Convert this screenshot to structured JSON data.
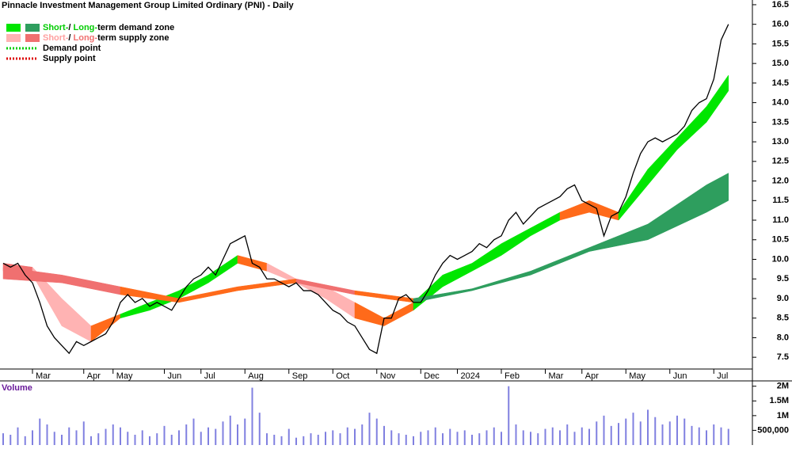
{
  "chart_data": [
    {
      "type": "line",
      "title": "Pinnacle Investment Management Group Limited Ordinary (PNI) - Daily",
      "color": "#000000",
      "categories": [
        null,
        null,
        null,
        null,
        "Mar",
        null,
        null,
        null,
        null,
        null,
        null,
        "Apr",
        null,
        null,
        null,
        "May",
        null,
        null,
        null,
        null,
        null,
        null,
        "Jun",
        null,
        null,
        null,
        null,
        "Jul",
        null,
        null,
        null,
        null,
        null,
        "Aug",
        null,
        null,
        null,
        null,
        null,
        "Sep",
        null,
        null,
        null,
        null,
        null,
        "Oct",
        null,
        null,
        null,
        null,
        null,
        "Nov",
        null,
        null,
        null,
        null,
        null,
        "Dec",
        null,
        null,
        null,
        null,
        "2024",
        null,
        null,
        null,
        null,
        null,
        "Feb",
        null,
        null,
        null,
        null,
        null,
        "Mar",
        null,
        null,
        null,
        null,
        "Apr",
        null,
        null,
        null,
        null,
        null,
        "May",
        null,
        null,
        null,
        null,
        null,
        "Jun",
        null,
        null,
        null,
        null,
        null,
        "Jul",
        null,
        null
      ],
      "values": [
        9.9,
        9.8,
        9.9,
        9.6,
        9.4,
        8.9,
        8.3,
        8.0,
        7.8,
        7.6,
        7.9,
        7.8,
        7.9,
        8.0,
        8.1,
        8.4,
        8.9,
        9.1,
        8.9,
        9.0,
        8.8,
        8.9,
        8.8,
        8.7,
        9.0,
        9.3,
        9.5,
        9.6,
        9.8,
        9.6,
        10.0,
        10.4,
        10.5,
        10.6,
        9.9,
        9.8,
        9.5,
        9.5,
        9.4,
        9.3,
        9.4,
        9.2,
        9.2,
        9.1,
        8.9,
        8.7,
        8.6,
        8.4,
        8.3,
        8.0,
        7.7,
        7.6,
        8.5,
        8.5,
        9.0,
        9.1,
        8.9,
        8.9,
        9.2,
        9.6,
        9.9,
        10.1,
        10.0,
        10.1,
        10.2,
        10.4,
        10.3,
        10.5,
        10.6,
        11.0,
        11.2,
        10.9,
        11.1,
        11.3,
        11.4,
        11.5,
        11.6,
        11.8,
        11.9,
        11.5,
        11.4,
        11.3,
        10.6,
        11.1,
        11.2,
        11.6,
        12.2,
        12.7,
        13.0,
        13.1,
        13.0,
        13.1,
        13.2,
        13.4,
        13.8,
        14.0,
        14.1,
        14.6,
        15.6,
        16.0
      ],
      "zones": [
        {
          "x": [
            0,
            4,
            8,
            12,
            16,
            20,
            24,
            28,
            32,
            36,
            40,
            44,
            48,
            52,
            56,
            60,
            64,
            68,
            72,
            76,
            80,
            84,
            88,
            92,
            96,
            99
          ],
          "low": [
            9.7,
            9.6,
            8.3,
            7.9,
            8.5,
            8.7,
            9.0,
            9.4,
            9.9,
            9.7,
            9.4,
            9.0,
            8.5,
            8.3,
            8.7,
            9.3,
            9.7,
            10.1,
            10.6,
            11.0,
            11.2,
            11.0,
            11.9,
            12.8,
            13.5,
            14.3
          ],
          "high": [
            9.9,
            9.8,
            9.0,
            8.3,
            8.6,
            8.9,
            9.2,
            9.6,
            10.1,
            9.9,
            9.5,
            9.3,
            8.9,
            8.5,
            8.9,
            9.6,
            9.9,
            10.4,
            10.8,
            11.2,
            11.5,
            11.2,
            12.3,
            13.1,
            13.9,
            14.7
          ],
          "colors": [
            "#f07070",
            "#ffb3b3",
            "#ffb3b3",
            "#ff6a1a",
            "#00e600",
            "#00e600",
            "#00e600",
            "#00e600",
            "#ff6a1a",
            "#ffb3b3",
            "#ffb3b3",
            "#ffb3b3",
            "#ff6a1a",
            "#ff6a1a",
            "#00e600",
            "#00e600",
            "#00e600",
            "#00e600",
            "#00e600",
            "#ff6a1a",
            "#ff6a1a",
            "#00e600",
            "#00e600",
            "#00e600",
            "#00e600",
            "#00e600"
          ]
        },
        {
          "x": [
            0,
            8,
            16,
            24,
            32,
            40,
            48,
            56,
            64,
            72,
            80,
            88,
            96,
            99
          ],
          "low": [
            9.5,
            9.4,
            9.1,
            8.9,
            9.2,
            9.4,
            9.1,
            8.9,
            9.2,
            9.6,
            10.2,
            10.5,
            11.2,
            11.5
          ],
          "high": [
            9.8,
            9.6,
            9.3,
            9.0,
            9.3,
            9.5,
            9.2,
            9.0,
            9.25,
            9.7,
            10.3,
            10.9,
            11.9,
            12.2
          ],
          "colors": [
            "#f07070",
            "#f07070",
            "#ff6a1a",
            "#ff6a1a",
            "#ff6a1a",
            "#f07070",
            "#ff6a1a",
            "#2e9e5e",
            "#2e9e5e",
            "#2e9e5e",
            "#2e9e5e",
            "#2e9e5e",
            "#2e9e5e",
            "#2e9e5e"
          ]
        }
      ],
      "legend": [
        {
          "parts": [
            "Short-",
            "/ ",
            "Long-",
            "term demand zone"
          ],
          "colors": [
            "#00e600",
            "#2e9e5e"
          ],
          "text_colors": [
            "#00cc00",
            "#000000",
            "#00cc00",
            "#000000"
          ]
        },
        {
          "parts": [
            "Short-",
            "/ ",
            "Long-",
            "term supply zone"
          ],
          "colors": [
            "#ffb3b3",
            "#f07070"
          ],
          "text_colors": [
            "#ffa0a0",
            "#000000",
            "#f07070",
            "#000000"
          ]
        },
        {
          "parts": [
            "Demand point"
          ],
          "colors": [
            "#00cc00"
          ],
          "style": "dotted"
        },
        {
          "parts": [
            "Supply point"
          ],
          "colors": [
            "#dd0000"
          ],
          "style": "dotted"
        }
      ],
      "ylim": [
        7.2,
        16.6
      ],
      "yticks": [
        7.5,
        {
          "value": 8,
          "label": "8.0"
        },
        8.5,
        {
          "value": 9,
          "label": "9.0"
        },
        9.5,
        {
          "value": 10,
          "label": "10.0"
        },
        10.5,
        {
          "value": 11,
          "label": "11.0"
        },
        11.5,
        {
          "value": 12,
          "label": "12.0"
        },
        12.5,
        {
          "value": 13,
          "label": "13.0"
        },
        13.5,
        {
          "value": 14,
          "label": "14.0"
        },
        14.5,
        {
          "value": 15,
          "label": "15.0"
        },
        15.5,
        {
          "value": 16,
          "label": "16.0"
        },
        16.5
      ]
    },
    {
      "type": "bar",
      "title": "Volume",
      "color": "#8080e0",
      "values": [
        400000,
        350000,
        600000,
        300000,
        500000,
        900000,
        700000,
        450000,
        350000,
        600000,
        500000,
        800000,
        300000,
        400000,
        550000,
        700000,
        600000,
        450000,
        350000,
        500000,
        300000,
        400000,
        650000,
        350000,
        500000,
        700000,
        900000,
        450000,
        600000,
        550000,
        800000,
        1000000,
        700000,
        900000,
        1950000,
        1100000,
        400000,
        350000,
        300000,
        550000,
        250000,
        300000,
        400000,
        350000,
        450000,
        500000,
        400000,
        600000,
        550000,
        700000,
        1100000,
        900000,
        650000,
        500000,
        400000,
        350000,
        300000,
        450000,
        500000,
        600000,
        400000,
        550000,
        450000,
        500000,
        350000,
        400000,
        500000,
        600000,
        450000,
        2000000,
        700000,
        500000,
        450000,
        400000,
        550000,
        600000,
        500000,
        700000,
        450000,
        600000,
        550000,
        800000,
        1000000,
        650000,
        750000,
        900000,
        1100000,
        800000,
        1200000,
        950000,
        700000,
        800000,
        1000000,
        900000,
        650000,
        600000,
        500000,
        700000,
        600000,
        550000
      ],
      "ylim": [
        0,
        2100000
      ],
      "yticks": [
        {
          "value": 500000,
          "label": "500,000"
        },
        {
          "value": 1000000,
          "label": "1M"
        },
        {
          "value": 1500000,
          "label": "1.5M"
        },
        {
          "value": 2000000,
          "label": "2M"
        }
      ]
    }
  ]
}
